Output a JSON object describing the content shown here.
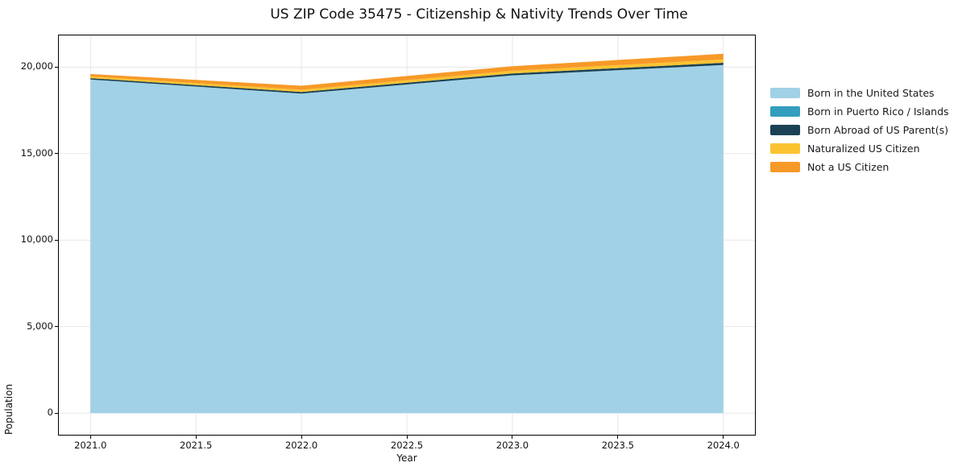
{
  "title": "US ZIP Code 35475 - Citizenship & Nativity Trends Over Time",
  "axes": {
    "x_label": "Year",
    "y_label": "Population"
  },
  "chart_data": {
    "type": "area",
    "stacked": true,
    "title": "US ZIP Code 35475 - Citizenship & Nativity Trends Over Time",
    "xlabel": "Year",
    "ylabel": "Population",
    "x": [
      2021,
      2022,
      2023,
      2024
    ],
    "series": [
      {
        "name": "Born in the United States",
        "color": "#a1d1e6",
        "values": [
          19280,
          18470,
          19520,
          20120
        ]
      },
      {
        "name": "Born in Puerto Rico / Islands",
        "color": "#349ebe",
        "values": [
          0,
          0,
          0,
          0
        ]
      },
      {
        "name": "Born Abroad of US Parent(s)",
        "color": "#1b4254",
        "values": [
          80,
          90,
          110,
          130
        ]
      },
      {
        "name": "Naturalized US Citizen",
        "color": "#fcc331",
        "values": [
          100,
          130,
          160,
          190
        ]
      },
      {
        "name": "Not a US Citizen",
        "color": "#f79928",
        "values": [
          140,
          230,
          260,
          330
        ]
      }
    ],
    "totals": [
      19600,
      18920,
      20050,
      20770
    ],
    "xlim": [
      2020.85,
      2024.15
    ],
    "ylim": [
      -1250,
      21830
    ],
    "xticks": [
      {
        "value": 2021.0,
        "label": "2021.0"
      },
      {
        "value": 2021.5,
        "label": "2021.5"
      },
      {
        "value": 2022.0,
        "label": "2022.0"
      },
      {
        "value": 2022.5,
        "label": "2022.5"
      },
      {
        "value": 2023.0,
        "label": "2023.0"
      },
      {
        "value": 2023.5,
        "label": "2023.5"
      },
      {
        "value": 2024.0,
        "label": "2024.0"
      }
    ],
    "yticks": [
      {
        "value": 0,
        "label": "0"
      },
      {
        "value": 5000,
        "label": "5,000"
      },
      {
        "value": 10000,
        "label": "10,000"
      },
      {
        "value": 15000,
        "label": "15,000"
      },
      {
        "value": 20000,
        "label": "20,000"
      }
    ],
    "grid": true,
    "grid_color": "#e7e7e7",
    "spine_color": "#000000",
    "legend_position": "right"
  }
}
